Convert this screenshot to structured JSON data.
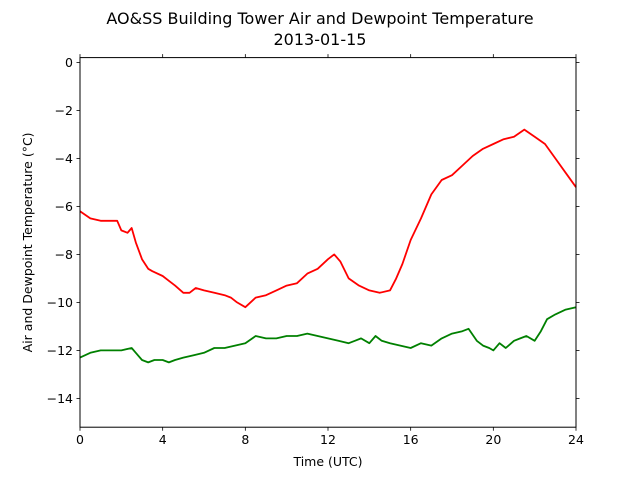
{
  "chart_data": {
    "type": "line",
    "title": "AO&SS Building Tower Air and Dewpoint Temperature",
    "subtitle": "2013-01-15",
    "xlabel": "Time (UTC)",
    "ylabel": "Air and Dewpoint Temperature (°C)",
    "xlim": [
      0,
      24
    ],
    "ylim": [
      -15.2,
      0.2
    ],
    "xticks": [
      0,
      4,
      8,
      12,
      16,
      20,
      24
    ],
    "xtick_labels": [
      "0",
      "4",
      "8",
      "12",
      "16",
      "20",
      "24"
    ],
    "yticks": [
      0,
      -2,
      -4,
      -6,
      -8,
      -10,
      -12,
      -14
    ],
    "ytick_labels": [
      "0",
      "−2",
      "−4",
      "−6",
      "−8",
      "−10",
      "−12",
      "−14"
    ],
    "grid": false,
    "series": [
      {
        "color": "#ff0000",
        "x": [
          0,
          0.5,
          1.0,
          1.5,
          1.8,
          2.0,
          2.3,
          2.5,
          2.7,
          3.0,
          3.3,
          3.5,
          4.0,
          4.3,
          4.6,
          5.0,
          5.3,
          5.6,
          6.0,
          6.5,
          7.0,
          7.3,
          7.6,
          8.0,
          8.5,
          9.0,
          9.5,
          10.0,
          10.5,
          11.0,
          11.5,
          12.0,
          12.3,
          12.6,
          13.0,
          13.5,
          14.0,
          14.5,
          15.0,
          15.3,
          15.6,
          16.0,
          16.5,
          17.0,
          17.5,
          18.0,
          18.5,
          19.0,
          19.5,
          20.0,
          20.5,
          21.0,
          21.5,
          22.0,
          22.5,
          23.0,
          23.5,
          24.0
        ],
        "values": [
          -6.2,
          -6.5,
          -6.6,
          -6.6,
          -6.6,
          -7.0,
          -7.1,
          -6.9,
          -7.5,
          -8.2,
          -8.6,
          -8.7,
          -8.9,
          -9.1,
          -9.3,
          -9.6,
          -9.6,
          -9.4,
          -9.5,
          -9.6,
          -9.7,
          -9.8,
          -10.0,
          -10.2,
          -9.8,
          -9.7,
          -9.5,
          -9.3,
          -9.2,
          -8.8,
          -8.6,
          -8.2,
          -8.0,
          -8.3,
          -9.0,
          -9.3,
          -9.5,
          -9.6,
          -9.5,
          -9.0,
          -8.4,
          -7.4,
          -6.5,
          -5.5,
          -4.9,
          -4.7,
          -4.3,
          -3.9,
          -3.6,
          -3.4,
          -3.2,
          -3.1,
          -2.8,
          -3.1,
          -3.4,
          -4.0,
          -4.6,
          -5.2
        ]
      },
      {
        "color": "#008000",
        "x": [
          0,
          0.5,
          1.0,
          1.5,
          2.0,
          2.5,
          2.7,
          3.0,
          3.3,
          3.6,
          4.0,
          4.3,
          4.6,
          5.0,
          5.5,
          6.0,
          6.5,
          7.0,
          7.5,
          8.0,
          8.5,
          9.0,
          9.5,
          10.0,
          10.5,
          11.0,
          11.5,
          12.0,
          12.5,
          13.0,
          13.3,
          13.6,
          14.0,
          14.3,
          14.6,
          15.0,
          15.5,
          16.0,
          16.5,
          17.0,
          17.5,
          18.0,
          18.5,
          18.8,
          19.2,
          19.5,
          19.8,
          20.0,
          20.3,
          20.6,
          21.0,
          21.3,
          21.6,
          22.0,
          22.3,
          22.6,
          23.0,
          23.5,
          24.0
        ],
        "values": [
          -12.3,
          -12.1,
          -12.0,
          -12.0,
          -12.0,
          -11.9,
          -12.1,
          -12.4,
          -12.5,
          -12.4,
          -12.4,
          -12.5,
          -12.4,
          -12.3,
          -12.2,
          -12.1,
          -11.9,
          -11.9,
          -11.8,
          -11.7,
          -11.4,
          -11.5,
          -11.5,
          -11.4,
          -11.4,
          -11.3,
          -11.4,
          -11.5,
          -11.6,
          -11.7,
          -11.6,
          -11.5,
          -11.7,
          -11.4,
          -11.6,
          -11.7,
          -11.8,
          -11.9,
          -11.7,
          -11.8,
          -11.5,
          -11.3,
          -11.2,
          -11.1,
          -11.6,
          -11.8,
          -11.9,
          -12.0,
          -11.7,
          -11.9,
          -11.6,
          -11.5,
          -11.4,
          -11.6,
          -11.2,
          -10.7,
          -10.5,
          -10.3,
          -10.2
        ]
      }
    ]
  }
}
